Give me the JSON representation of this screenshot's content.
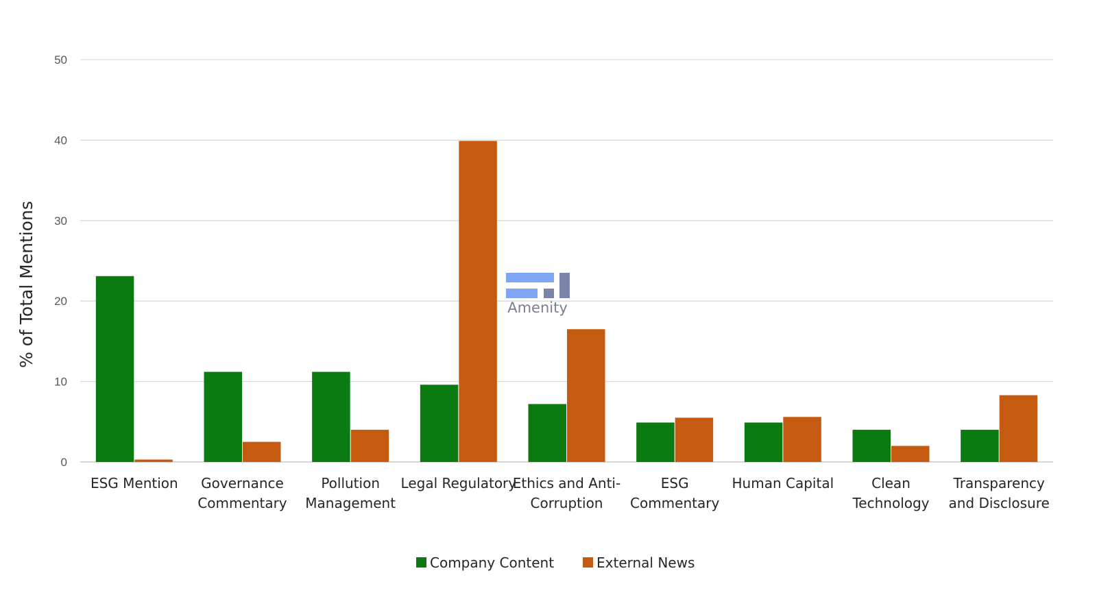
{
  "chart_data": {
    "type": "bar",
    "title": "",
    "xlabel": "",
    "ylabel": "% of Total Mentions",
    "ylim": [
      0,
      50
    ],
    "yticks": [
      0,
      10,
      20,
      30,
      40,
      50
    ],
    "grid": true,
    "legend_position": "bottom",
    "categories": [
      [
        "ESG Mention"
      ],
      [
        "Governance",
        "Commentary"
      ],
      [
        "Pollution",
        "Management"
      ],
      [
        "Legal Regulatory"
      ],
      [
        "Ethics and Anti-",
        "Corruption"
      ],
      [
        "ESG",
        "Commentary"
      ],
      [
        "Human Capital"
      ],
      [
        "Clean",
        "Technology"
      ],
      [
        "Transparency",
        "and Disclosure"
      ]
    ],
    "series": [
      {
        "name": "Company Content",
        "color": "#0b7a10",
        "values": [
          23.1,
          11.2,
          11.2,
          9.6,
          7.2,
          4.9,
          4.9,
          4.0,
          4.0
        ]
      },
      {
        "name": "External News",
        "color": "#c55a11",
        "values": [
          0.3,
          2.5,
          4.0,
          39.9,
          16.5,
          5.5,
          5.6,
          2.0,
          8.3
        ]
      }
    ]
  },
  "logo": {
    "text": "Amenity"
  }
}
